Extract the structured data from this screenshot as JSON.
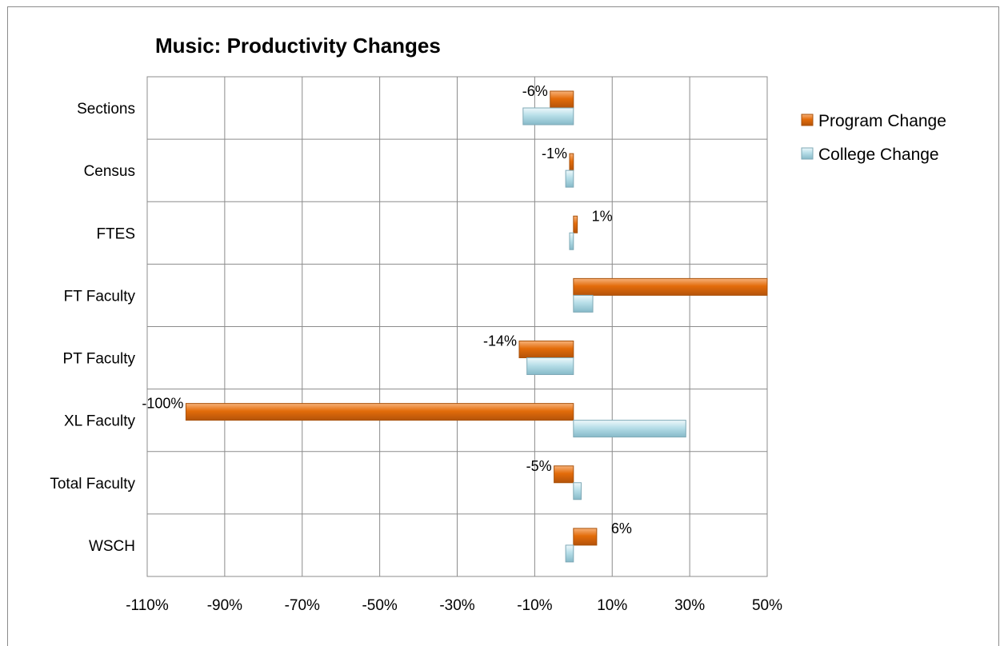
{
  "chart_data": {
    "type": "bar",
    "orientation": "horizontal",
    "title": "Music: Productivity Changes",
    "categories": [
      "Sections",
      "Census",
      "FTES",
      "FT Faculty",
      "PT Faculty",
      "XL Faculty",
      "Total Faculty",
      "WSCH"
    ],
    "x_ticks": [
      "-110%",
      "-90%",
      "-70%",
      "-50%",
      "-30%",
      "-10%",
      "10%",
      "30%",
      "50%"
    ],
    "xlim": [
      -110,
      50
    ],
    "grid": true,
    "legend_position": "right",
    "series": [
      {
        "name": "Program Change",
        "color": "#e36c0a",
        "values": [
          -6,
          -1,
          1,
          50,
          -14,
          -100,
          -5,
          6
        ],
        "labels": [
          "-6%",
          "-1%",
          "1%",
          "",
          "-14%",
          "-100%",
          "-5%",
          "6%"
        ]
      },
      {
        "name": "College Change",
        "color": "#b7dee8",
        "values": [
          -13,
          -2,
          -1,
          5,
          -12,
          29,
          2,
          -2
        ]
      }
    ]
  }
}
